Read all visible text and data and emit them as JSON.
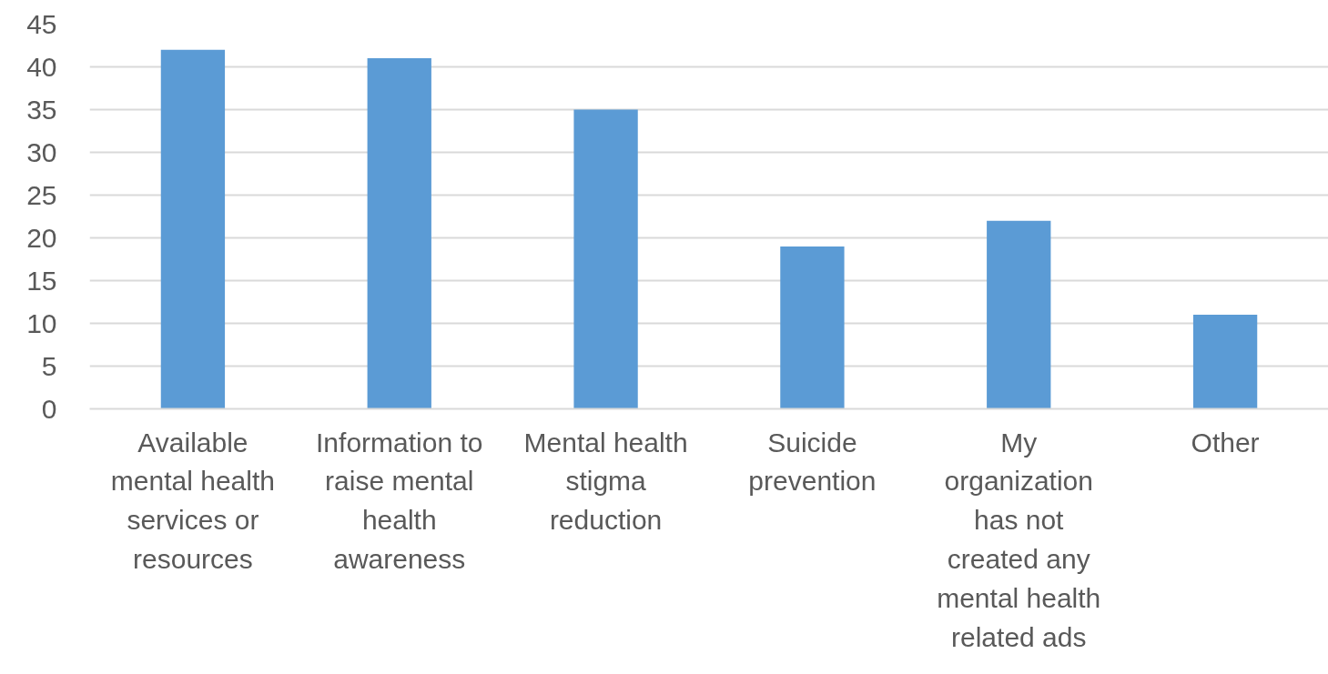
{
  "chart_data": {
    "type": "bar",
    "categories": [
      "Available mental health services or resources",
      "Information to raise mental health awareness",
      "Mental health stigma reduction",
      "Suicide prevention",
      "My organization has not created any mental health related ads",
      "Other"
    ],
    "values": [
      42,
      41,
      35,
      19,
      22,
      11
    ],
    "color": "#5b9bd5",
    "ylim": [
      0,
      45
    ],
    "yticks": [
      0,
      5,
      10,
      15,
      20,
      25,
      30,
      35,
      40,
      45
    ],
    "grid": "y"
  }
}
